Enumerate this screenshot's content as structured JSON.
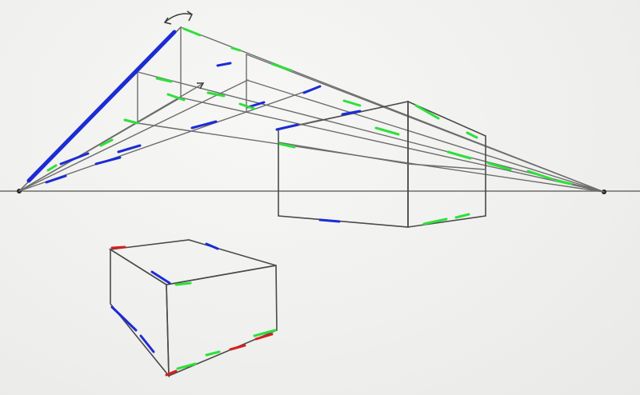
{
  "colors": {
    "paper": "#f1f1ef",
    "pencil": "#6d6d6d",
    "blue": "#1c2bd6",
    "green": "#2ee03a",
    "red": "#d81e1e"
  },
  "icons": {
    "rotate_handle": "curved-double-arrow-icon",
    "arrow_tip": "arrow-icon"
  }
}
